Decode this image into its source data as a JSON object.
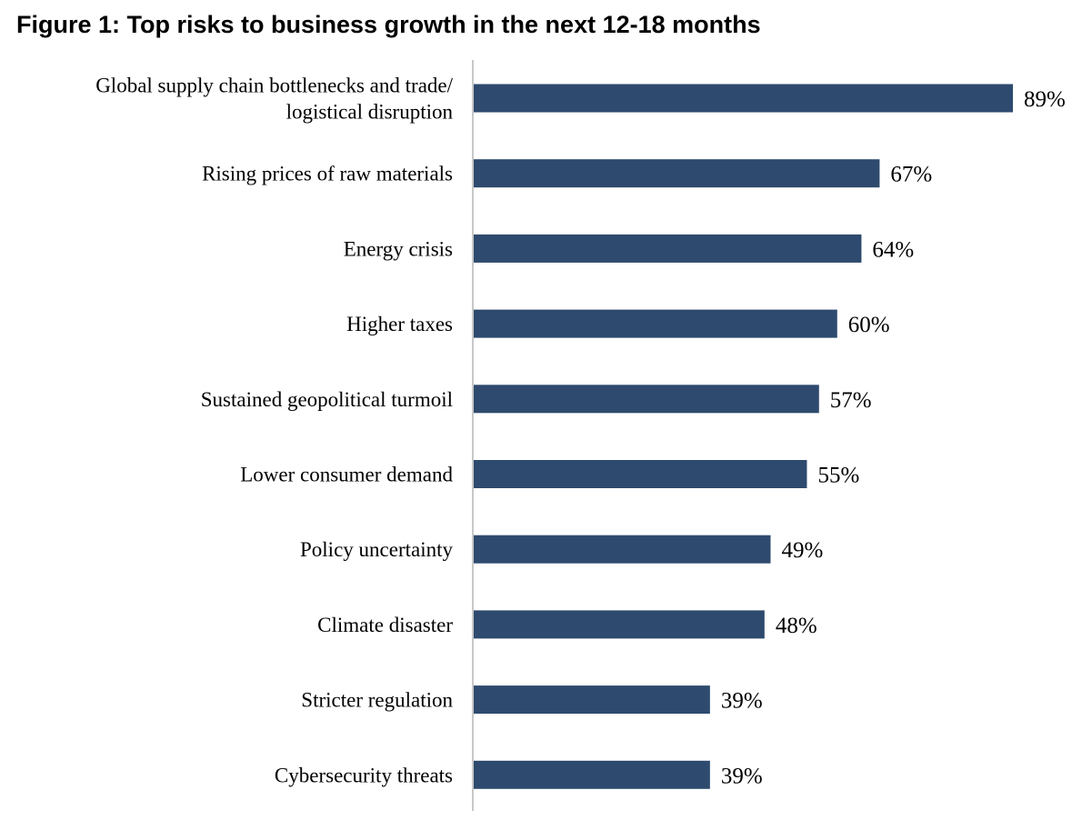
{
  "chart_data": {
    "type": "bar",
    "orientation": "horizontal",
    "title": "Figure 1: Top risks to business growth in the next 12-18 months",
    "categories": [
      [
        "Global supply chain bottlenecks and trade/",
        "logistical disruption"
      ],
      [
        "Rising prices of raw materials"
      ],
      [
        "Energy crisis"
      ],
      [
        "Higher taxes"
      ],
      [
        "Sustained geopolitical turmoil"
      ],
      [
        "Lower consumer demand"
      ],
      [
        "Policy uncertainty"
      ],
      [
        "Climate disaster"
      ],
      [
        "Stricter regulation"
      ],
      [
        "Cybersecurity threats"
      ]
    ],
    "values": [
      89,
      67,
      64,
      60,
      57,
      55,
      49,
      48,
      39,
      39
    ],
    "value_labels": [
      "89%",
      "67%",
      "64%",
      "60%",
      "57%",
      "55%",
      "49%",
      "48%",
      "39%",
      "39%"
    ],
    "xlim": [
      0,
      100
    ],
    "bar_color": "#2e4a6e",
    "axis_color": "#c8c8c8",
    "grid": false,
    "legend": "none"
  }
}
